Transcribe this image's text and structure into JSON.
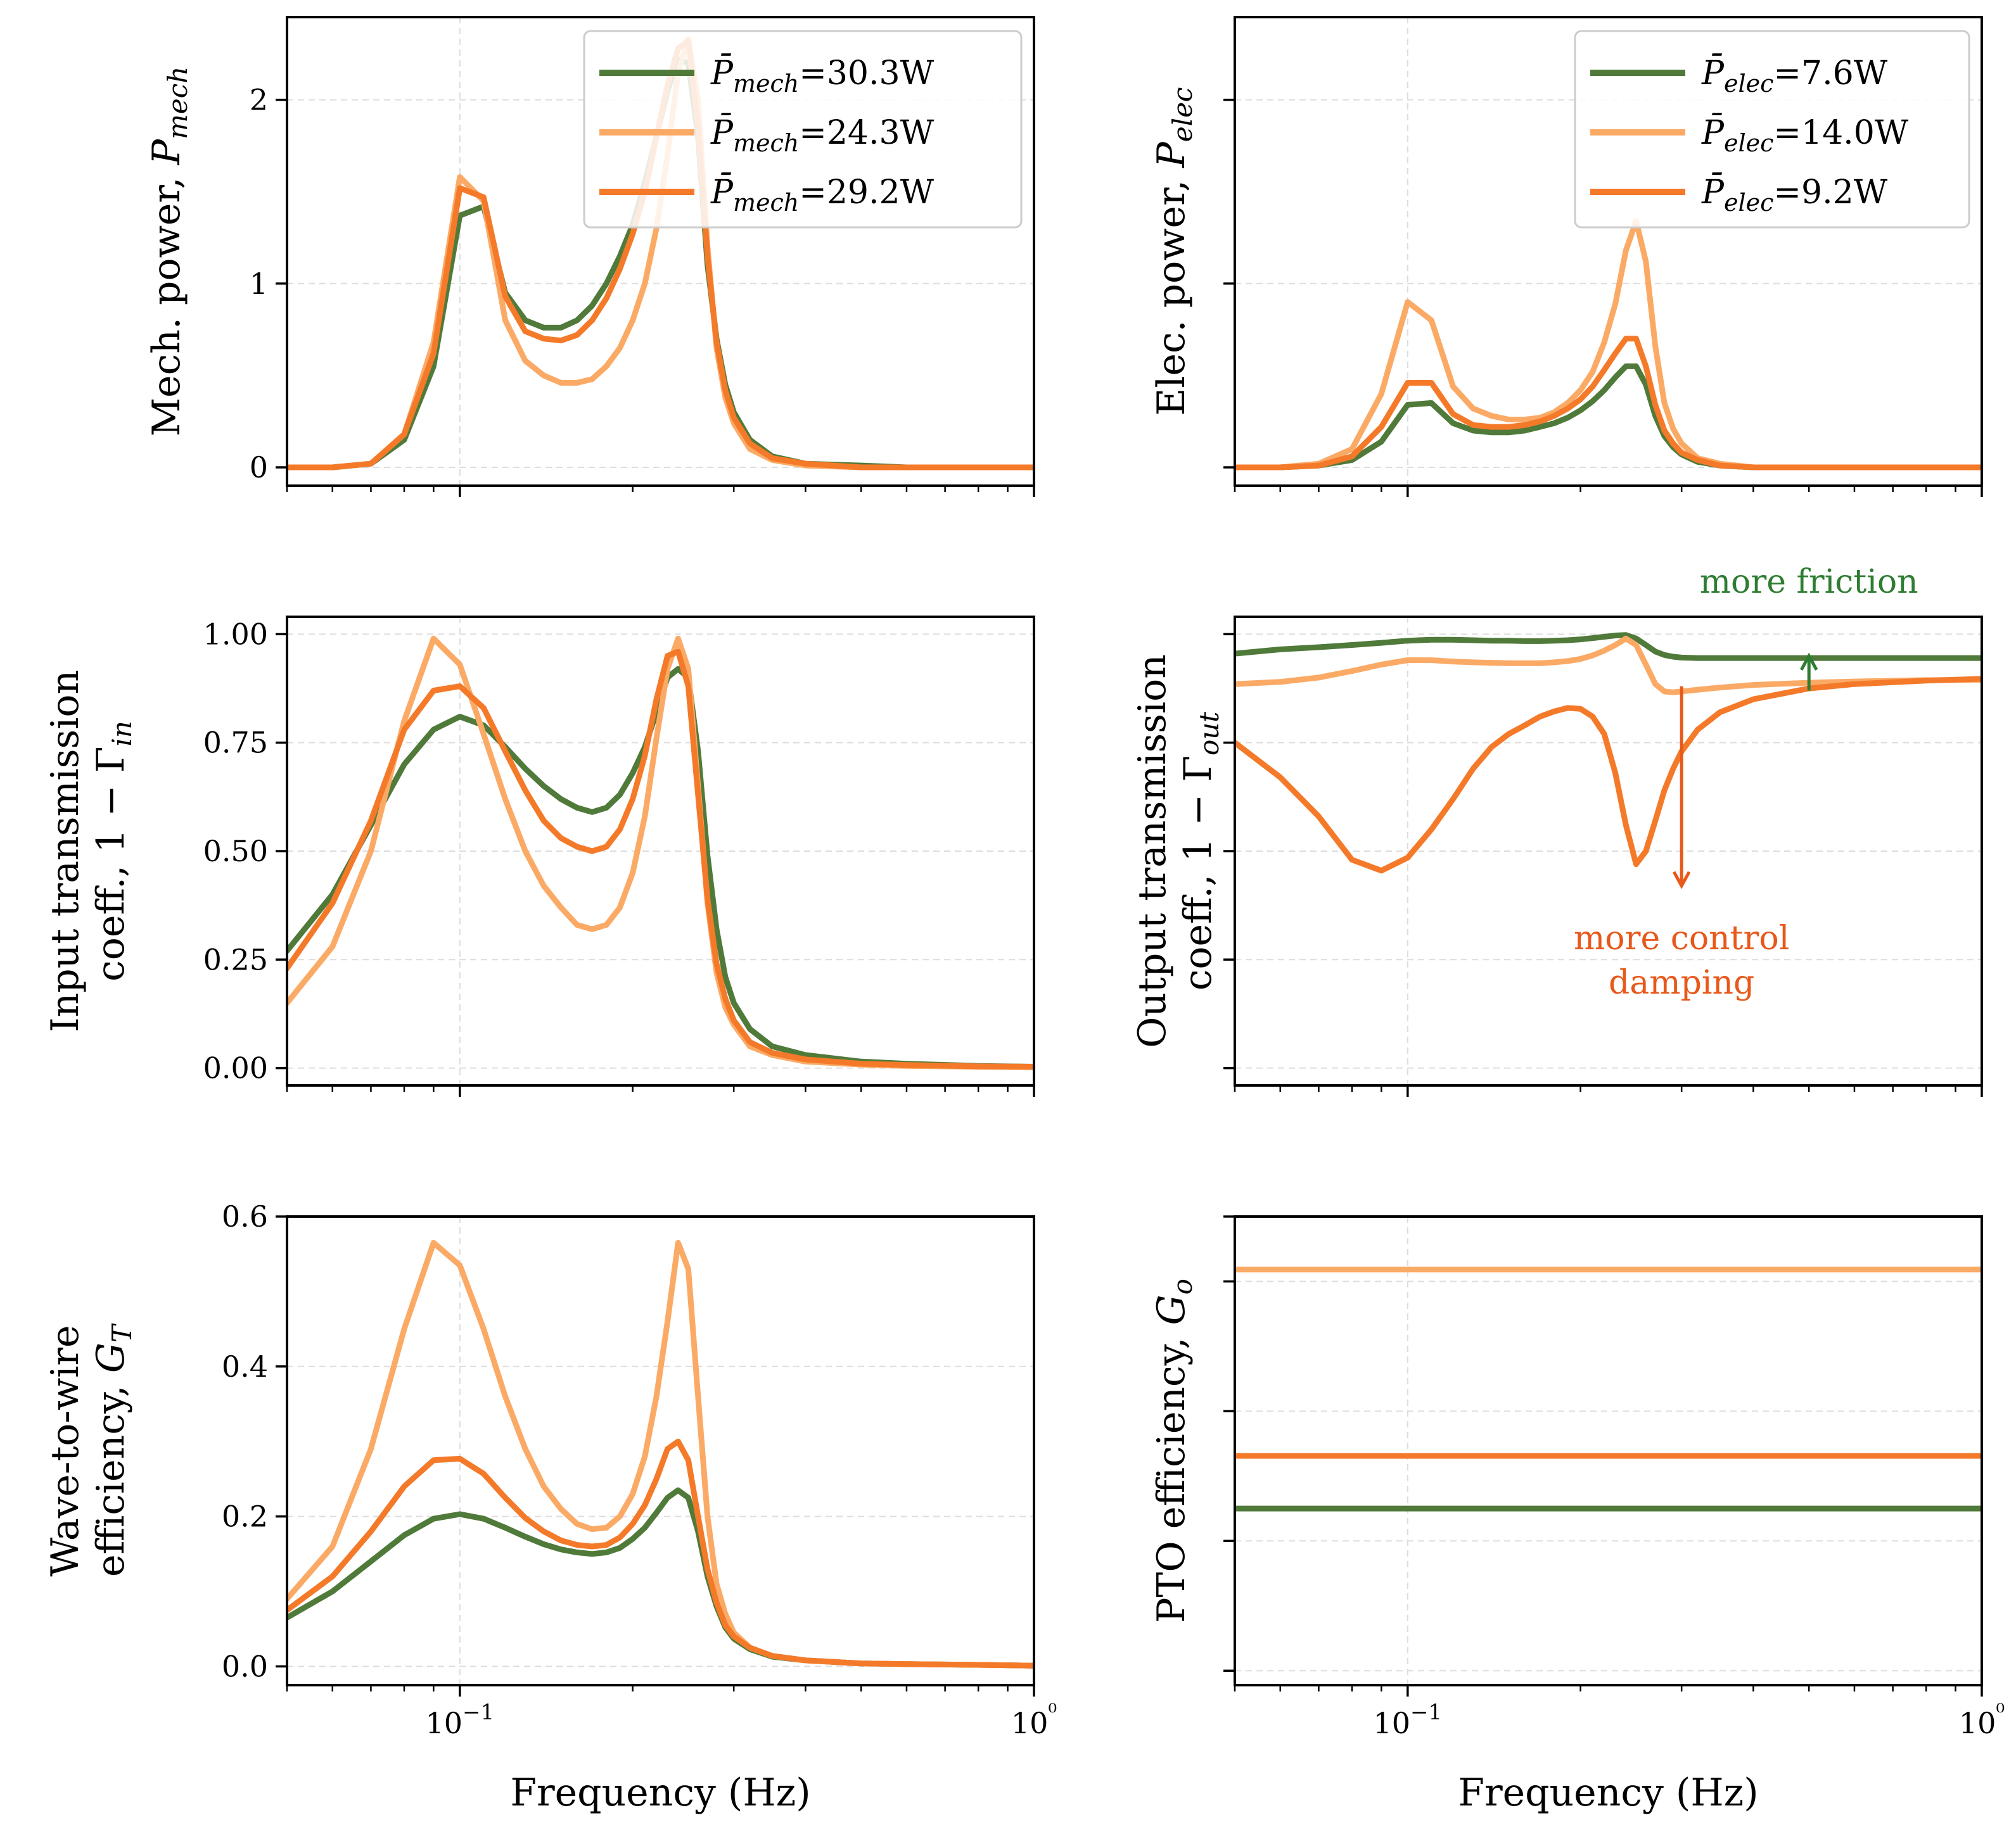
{
  "colors": {
    "green": "#507a3a",
    "light_orange": "#fbaa66",
    "orange": "#f47a2a",
    "annot_green": "#2e7d32",
    "annot_orange": "#e8581a",
    "grid": "#dddddd"
  },
  "shared": {
    "xlabel": "Frequency (Hz)",
    "xscale": "log",
    "xlim": [
      0.05,
      1.0
    ],
    "xtick_labels": [
      "10−1",
      "10⁰"
    ]
  },
  "chart_data": [
    {
      "id": "mech-power",
      "type": "line",
      "ylabel": "Mech. power, P_mech",
      "ylabel_main": "Mech. power, ",
      "ylabel_sym": "P",
      "ylabel_sub": "mech",
      "ylim": [
        -0.1,
        2.45
      ],
      "yticks": [
        0,
        1,
        2
      ],
      "ytick_labels": [
        "0",
        "1",
        "2"
      ],
      "legend": {
        "placement": "top-right",
        "entries": [
          {
            "sym": "P̄",
            "sub": "mech",
            "value": "=30.3W",
            "color": "green"
          },
          {
            "sym": "P̄",
            "sub": "mech",
            "value": "=24.3W",
            "color": "light_orange"
          },
          {
            "sym": "P̄",
            "sub": "mech",
            "value": "=29.2W",
            "color": "orange"
          }
        ]
      },
      "x": [
        0.05,
        0.06,
        0.07,
        0.08,
        0.09,
        0.1,
        0.11,
        0.12,
        0.13,
        0.14,
        0.15,
        0.16,
        0.17,
        0.18,
        0.19,
        0.2,
        0.21,
        0.22,
        0.23,
        0.24,
        0.25,
        0.26,
        0.27,
        0.28,
        0.29,
        0.3,
        0.32,
        0.35,
        0.4,
        0.5,
        0.6,
        0.8,
        1.0
      ],
      "series": [
        {
          "color": "green",
          "values": [
            0,
            0,
            0.02,
            0.15,
            0.55,
            1.37,
            1.42,
            0.95,
            0.8,
            0.76,
            0.76,
            0.8,
            0.88,
            1.0,
            1.15,
            1.32,
            1.55,
            1.8,
            2.05,
            2.22,
            2.2,
            1.8,
            1.1,
            0.7,
            0.45,
            0.3,
            0.15,
            0.06,
            0.02,
            0.01,
            0,
            0,
            0
          ]
        },
        {
          "color": "light_orange",
          "values": [
            0,
            0,
            0.02,
            0.18,
            0.68,
            1.58,
            1.45,
            0.8,
            0.58,
            0.5,
            0.46,
            0.46,
            0.48,
            0.55,
            0.65,
            0.8,
            1.0,
            1.3,
            1.7,
            2.15,
            2.33,
            2.0,
            1.2,
            0.65,
            0.38,
            0.24,
            0.1,
            0.04,
            0.01,
            0,
            0,
            0,
            0
          ]
        },
        {
          "color": "orange",
          "values": [
            0,
            0,
            0.02,
            0.18,
            0.62,
            1.52,
            1.47,
            0.93,
            0.74,
            0.7,
            0.69,
            0.72,
            0.8,
            0.92,
            1.08,
            1.27,
            1.5,
            1.8,
            2.08,
            2.28,
            2.32,
            1.85,
            1.15,
            0.68,
            0.42,
            0.27,
            0.13,
            0.05,
            0.02,
            0,
            0,
            0,
            0
          ]
        }
      ]
    },
    {
      "id": "elec-power",
      "type": "line",
      "ylabel": "Elec. power, P_elec",
      "ylabel_main": "Elec. power, ",
      "ylabel_sym": "P",
      "ylabel_sub": "elec",
      "ylim": [
        -0.1,
        2.45
      ],
      "yticks": [
        0,
        1,
        2
      ],
      "ytick_labels": [
        "",
        "",
        ""
      ],
      "legend": {
        "placement": "top-right",
        "entries": [
          {
            "sym": "P̄",
            "sub": "elec",
            "value": "=7.6W",
            "color": "green"
          },
          {
            "sym": "P̄",
            "sub": "elec",
            "value": "=14.0W",
            "color": "light_orange"
          },
          {
            "sym": "P̄",
            "sub": "elec",
            "value": "=9.2W",
            "color": "orange"
          }
        ]
      },
      "x": [
        0.05,
        0.06,
        0.07,
        0.08,
        0.09,
        0.1,
        0.11,
        0.12,
        0.13,
        0.14,
        0.15,
        0.16,
        0.17,
        0.18,
        0.19,
        0.2,
        0.21,
        0.22,
        0.23,
        0.24,
        0.25,
        0.26,
        0.27,
        0.28,
        0.29,
        0.3,
        0.32,
        0.35,
        0.4,
        0.5,
        0.6,
        0.8,
        1.0
      ],
      "series": [
        {
          "color": "green",
          "values": [
            0,
            0,
            0.01,
            0.04,
            0.14,
            0.34,
            0.35,
            0.24,
            0.2,
            0.19,
            0.19,
            0.2,
            0.22,
            0.24,
            0.27,
            0.31,
            0.36,
            0.42,
            0.49,
            0.55,
            0.55,
            0.45,
            0.28,
            0.17,
            0.11,
            0.07,
            0.03,
            0.01,
            0,
            0,
            0,
            0,
            0
          ]
        },
        {
          "color": "light_orange",
          "values": [
            0,
            0,
            0.02,
            0.1,
            0.4,
            0.9,
            0.8,
            0.44,
            0.32,
            0.28,
            0.26,
            0.26,
            0.27,
            0.3,
            0.35,
            0.42,
            0.52,
            0.68,
            0.89,
            1.18,
            1.34,
            1.12,
            0.66,
            0.35,
            0.21,
            0.13,
            0.05,
            0.02,
            0,
            0,
            0,
            0,
            0
          ]
        },
        {
          "color": "orange",
          "values": [
            0,
            0,
            0.01,
            0.06,
            0.22,
            0.46,
            0.46,
            0.29,
            0.23,
            0.22,
            0.22,
            0.23,
            0.25,
            0.28,
            0.32,
            0.37,
            0.44,
            0.53,
            0.62,
            0.7,
            0.7,
            0.55,
            0.34,
            0.2,
            0.13,
            0.08,
            0.04,
            0.01,
            0,
            0,
            0,
            0,
            0
          ]
        }
      ]
    },
    {
      "id": "input-transmission",
      "type": "line",
      "ylabel_line1": "Input transmission",
      "ylabel_line2_main": "coeff., 1 − Γ",
      "ylabel_line2_sub": "in",
      "ylim": [
        -0.04,
        1.04
      ],
      "yticks": [
        0,
        0.25,
        0.5,
        0.75,
        1.0
      ],
      "ytick_labels": [
        "0.00",
        "0.25",
        "0.50",
        "0.75",
        "1.00"
      ],
      "x": [
        0.05,
        0.06,
        0.07,
        0.08,
        0.09,
        0.1,
        0.11,
        0.12,
        0.13,
        0.14,
        0.15,
        0.16,
        0.17,
        0.18,
        0.19,
        0.2,
        0.21,
        0.22,
        0.23,
        0.24,
        0.25,
        0.26,
        0.27,
        0.28,
        0.29,
        0.3,
        0.32,
        0.35,
        0.4,
        0.5,
        0.6,
        0.8,
        1.0
      ],
      "series": [
        {
          "color": "green",
          "values": [
            0.27,
            0.4,
            0.56,
            0.7,
            0.78,
            0.81,
            0.79,
            0.74,
            0.69,
            0.65,
            0.62,
            0.6,
            0.59,
            0.6,
            0.63,
            0.68,
            0.74,
            0.82,
            0.9,
            0.92,
            0.9,
            0.73,
            0.49,
            0.32,
            0.21,
            0.15,
            0.09,
            0.05,
            0.03,
            0.015,
            0.01,
            0.005,
            0.003
          ]
        },
        {
          "color": "light_orange",
          "values": [
            0.15,
            0.28,
            0.5,
            0.8,
            0.99,
            0.93,
            0.77,
            0.62,
            0.5,
            0.42,
            0.37,
            0.33,
            0.32,
            0.33,
            0.37,
            0.45,
            0.58,
            0.76,
            0.92,
            0.99,
            0.92,
            0.65,
            0.38,
            0.22,
            0.14,
            0.1,
            0.05,
            0.03,
            0.015,
            0.008,
            0.005,
            0.003,
            0.002
          ]
        },
        {
          "color": "orange",
          "values": [
            0.23,
            0.38,
            0.57,
            0.78,
            0.87,
            0.88,
            0.83,
            0.73,
            0.64,
            0.57,
            0.53,
            0.51,
            0.5,
            0.51,
            0.55,
            0.62,
            0.72,
            0.85,
            0.95,
            0.96,
            0.88,
            0.63,
            0.39,
            0.24,
            0.16,
            0.11,
            0.06,
            0.035,
            0.02,
            0.01,
            0.007,
            0.004,
            0.003
          ]
        }
      ]
    },
    {
      "id": "output-transmission",
      "type": "line",
      "ylabel_line1": "Output transmission",
      "ylabel_line2_main": "coeff., 1 − Γ",
      "ylabel_line2_sub": "out",
      "ylim": [
        -0.04,
        1.04
      ],
      "yticks": [
        0,
        0.25,
        0.5,
        0.75,
        1.0
      ],
      "ytick_labels": [
        "",
        "",
        "",
        "",
        ""
      ],
      "x": [
        0.05,
        0.06,
        0.07,
        0.08,
        0.09,
        0.1,
        0.11,
        0.12,
        0.13,
        0.14,
        0.15,
        0.16,
        0.17,
        0.18,
        0.19,
        0.2,
        0.21,
        0.22,
        0.23,
        0.24,
        0.25,
        0.26,
        0.27,
        0.28,
        0.29,
        0.3,
        0.32,
        0.35,
        0.4,
        0.5,
        0.6,
        0.8,
        1.0
      ],
      "series": [
        {
          "color": "green",
          "values": [
            0.955,
            0.965,
            0.97,
            0.975,
            0.98,
            0.985,
            0.987,
            0.987,
            0.986,
            0.985,
            0.985,
            0.984,
            0.984,
            0.985,
            0.986,
            0.988,
            0.991,
            0.994,
            0.997,
            0.998,
            0.99,
            0.975,
            0.96,
            0.952,
            0.948,
            0.946,
            0.945,
            0.945,
            0.945,
            0.945,
            0.945,
            0.945,
            0.945
          ]
        },
        {
          "color": "light_orange",
          "values": [
            0.885,
            0.89,
            0.9,
            0.915,
            0.93,
            0.94,
            0.94,
            0.937,
            0.935,
            0.934,
            0.933,
            0.933,
            0.933,
            0.935,
            0.938,
            0.943,
            0.951,
            0.962,
            0.975,
            0.99,
            0.975,
            0.93,
            0.885,
            0.868,
            0.866,
            0.868,
            0.872,
            0.877,
            0.883,
            0.888,
            0.891,
            0.894,
            0.895
          ]
        },
        {
          "color": "orange",
          "values": [
            0.75,
            0.67,
            0.58,
            0.48,
            0.455,
            0.485,
            0.55,
            0.62,
            0.69,
            0.74,
            0.77,
            0.79,
            0.81,
            0.822,
            0.83,
            0.828,
            0.81,
            0.77,
            0.68,
            0.56,
            0.47,
            0.5,
            0.57,
            0.64,
            0.69,
            0.73,
            0.78,
            0.82,
            0.85,
            0.875,
            0.885,
            0.893,
            0.897
          ]
        }
      ],
      "annotations": [
        {
          "text": "more friction",
          "color": "annot_green",
          "arrow": {
            "x": 0.5,
            "from": 0.87,
            "to": 0.95
          }
        },
        {
          "text_lines": [
            "more control",
            "damping"
          ],
          "color": "annot_orange",
          "arrow": {
            "x": 0.3,
            "from": 0.88,
            "to": 0.42
          }
        }
      ]
    },
    {
      "id": "wave-to-wire",
      "type": "line",
      "ylabel_line1": "Wave-to-wire",
      "ylabel_line2_main": "efficiency, ",
      "ylabel_line2_sym": "G",
      "ylabel_line2_sub": "T",
      "ylim": [
        -0.025,
        0.6
      ],
      "yticks": [
        0,
        0.2,
        0.4,
        0.6
      ],
      "ytick_labels": [
        "0.0",
        "0.2",
        "0.4",
        "0.6"
      ],
      "x": [
        0.05,
        0.06,
        0.07,
        0.08,
        0.09,
        0.1,
        0.11,
        0.12,
        0.13,
        0.14,
        0.15,
        0.16,
        0.17,
        0.18,
        0.19,
        0.2,
        0.21,
        0.22,
        0.23,
        0.24,
        0.25,
        0.26,
        0.27,
        0.28,
        0.29,
        0.3,
        0.32,
        0.35,
        0.4,
        0.5,
        0.6,
        0.8,
        1.0
      ],
      "series": [
        {
          "color": "green",
          "values": [
            0.065,
            0.1,
            0.14,
            0.175,
            0.197,
            0.203,
            0.197,
            0.185,
            0.173,
            0.163,
            0.156,
            0.152,
            0.15,
            0.152,
            0.158,
            0.17,
            0.185,
            0.205,
            0.225,
            0.235,
            0.225,
            0.18,
            0.12,
            0.08,
            0.052,
            0.037,
            0.023,
            0.013,
            0.008,
            0.004,
            0.003,
            0.002,
            0.001
          ]
        },
        {
          "color": "light_orange",
          "values": [
            0.09,
            0.16,
            0.29,
            0.45,
            0.565,
            0.535,
            0.45,
            0.36,
            0.29,
            0.24,
            0.21,
            0.19,
            0.183,
            0.185,
            0.2,
            0.23,
            0.28,
            0.36,
            0.46,
            0.565,
            0.53,
            0.36,
            0.2,
            0.11,
            0.07,
            0.045,
            0.025,
            0.014,
            0.008,
            0.004,
            0.003,
            0.002,
            0.001
          ]
        },
        {
          "color": "orange",
          "values": [
            0.075,
            0.12,
            0.18,
            0.24,
            0.275,
            0.277,
            0.257,
            0.225,
            0.198,
            0.18,
            0.168,
            0.162,
            0.16,
            0.162,
            0.172,
            0.19,
            0.215,
            0.25,
            0.29,
            0.3,
            0.275,
            0.2,
            0.13,
            0.085,
            0.055,
            0.04,
            0.025,
            0.014,
            0.008,
            0.004,
            0.003,
            0.002,
            0.001
          ]
        }
      ]
    },
    {
      "id": "pto-efficiency",
      "type": "line",
      "ylabel": "PTO efficiency, G_o",
      "ylabel_main": "PTO efficiency, ",
      "ylabel_sym": "G",
      "ylabel_sub": "o",
      "ylim": [
        0,
        0.65
      ],
      "yticks": [
        0.02,
        0.2,
        0.38,
        0.56,
        0.65
      ],
      "ytick_labels": [
        "",
        "",
        "",
        "",
        ""
      ],
      "x": [
        0.05,
        1.0
      ],
      "series": [
        {
          "color": "green",
          "values": [
            0.245,
            0.245
          ]
        },
        {
          "color": "light_orange",
          "values": [
            0.5765,
            0.5765
          ]
        },
        {
          "color": "orange",
          "values": [
            0.318,
            0.318
          ]
        }
      ]
    }
  ]
}
